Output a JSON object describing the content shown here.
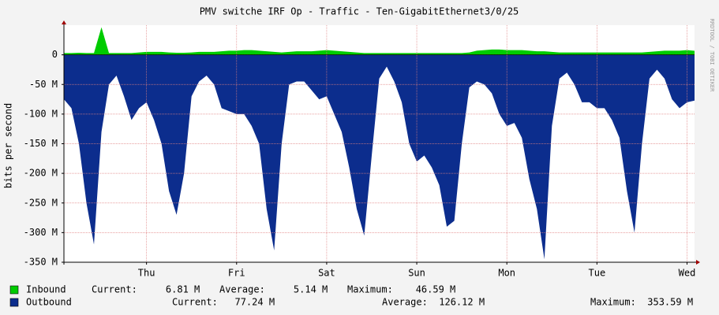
{
  "chart_data": {
    "type": "area",
    "title": "PMV switche IRF Op - Traffic - Ten-GigabitEthernet3/0/25",
    "ylabel": "bits per second",
    "credit": "RRDTOOL / TOBI OETIKER",
    "ylim": [
      -350000000,
      50000000
    ],
    "yticks": [
      0,
      {
        "value": -50000000,
        "label": "-50 M"
      },
      {
        "value": -100000000,
        "label": "-100 M"
      },
      {
        "value": -150000000,
        "label": "-150 M"
      },
      {
        "value": -200000000,
        "label": "-200 M"
      },
      {
        "value": -250000000,
        "label": "-250 M"
      },
      {
        "value": -300000000,
        "label": "-300 M"
      },
      {
        "value": -350000000,
        "label": "-350 M"
      }
    ],
    "xlim": [
      0,
      84
    ],
    "xticks": [
      {
        "value": 11,
        "label": "Thu"
      },
      {
        "value": 23,
        "label": "Fri"
      },
      {
        "value": 35,
        "label": "Sat"
      },
      {
        "value": 47,
        "label": "Sun"
      },
      {
        "value": 59,
        "label": "Mon"
      },
      {
        "value": 71,
        "label": "Tue"
      },
      {
        "value": 83,
        "label": "Wed"
      }
    ],
    "grid": true,
    "series": [
      {
        "name": "Inbound",
        "color": "#00cc00",
        "summary": [
          "Current:     6.81 M",
          "Average:     5.14 M",
          "Maximum:    46.59 M"
        ],
        "values": [
          3000000,
          3000000,
          3500000,
          3000000,
          3000000,
          46590000,
          3000000,
          3000000,
          3000000,
          3000000,
          4000000,
          5000000,
          5000000,
          5000000,
          4000000,
          3500000,
          3500000,
          4000000,
          5000000,
          5000000,
          5000000,
          6000000,
          7000000,
          7000000,
          8000000,
          8000000,
          7000000,
          6000000,
          5000000,
          4000000,
          5000000,
          6000000,
          6000000,
          6000000,
          7000000,
          8000000,
          7000000,
          6000000,
          5000000,
          4000000,
          3000000,
          3000000,
          3000000,
          3000000,
          3000000,
          3000000,
          3000000,
          3000000,
          3000000,
          3000000,
          3000000,
          3000000,
          3000000,
          3000000,
          4000000,
          7000000,
          8000000,
          9000000,
          9000000,
          8000000,
          8000000,
          8000000,
          7000000,
          6000000,
          6000000,
          5000000,
          4000000,
          4000000,
          4000000,
          4000000,
          4000000,
          4000000,
          4000000,
          4000000,
          4000000,
          4000000,
          4000000,
          4000000,
          5000000,
          6000000,
          7000000,
          7000000,
          7000000,
          8000000,
          6810000
        ]
      },
      {
        "name": "Outbound",
        "color": "#0c2d8d",
        "summary": [
          "Current:   77.24 M",
          "Average:  126.12 M",
          "Maximum:  353.59 M"
        ],
        "values": [
          -75000000,
          -90000000,
          -150000000,
          -250000000,
          -320000000,
          -130000000,
          -50000000,
          -35000000,
          -70000000,
          -110000000,
          -90000000,
          -80000000,
          -110000000,
          -150000000,
          -230000000,
          -270000000,
          -200000000,
          -70000000,
          -45000000,
          -35000000,
          -50000000,
          -90000000,
          -95000000,
          -100000000,
          -100000000,
          -120000000,
          -150000000,
          -260000000,
          -330000000,
          -150000000,
          -50000000,
          -45000000,
          -45000000,
          -60000000,
          -75000000,
          -70000000,
          -100000000,
          -130000000,
          -190000000,
          -260000000,
          -305000000,
          -170000000,
          -40000000,
          -20000000,
          -45000000,
          -80000000,
          -150000000,
          -180000000,
          -170000000,
          -190000000,
          -220000000,
          -290000000,
          -280000000,
          -150000000,
          -55000000,
          -45000000,
          -50000000,
          -65000000,
          -100000000,
          -120000000,
          -115000000,
          -140000000,
          -210000000,
          -260000000,
          -345000000,
          -120000000,
          -40000000,
          -30000000,
          -50000000,
          -80000000,
          -80000000,
          -90000000,
          -90000000,
          -110000000,
          -140000000,
          -230000000,
          -300000000,
          -150000000,
          -40000000,
          -25000000,
          -40000000,
          -75000000,
          -90000000,
          -80000000,
          -77240000
        ]
      }
    ]
  }
}
